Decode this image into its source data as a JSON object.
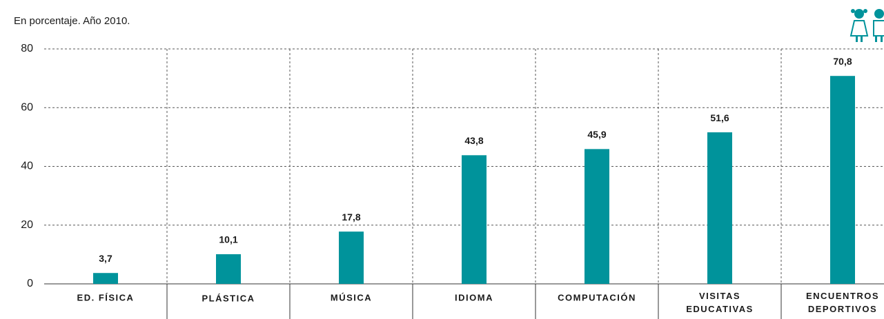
{
  "chart_data": {
    "type": "bar",
    "subtitle": "En porcentaje. Año 2010.",
    "categories": [
      "ED. FÍSICA",
      "PLÁSTICA",
      "MÚSICA",
      "IDIOMA",
      "COMPUTACIÓN",
      "VISITAS EDUCATIVAS",
      "ENCUENTROS DEPORTIVOS"
    ],
    "values": [
      3.7,
      10.1,
      17.8,
      43.8,
      45.9,
      51.6,
      70.8
    ],
    "value_labels": [
      "3,7",
      "10,1",
      "17,8",
      "43,8",
      "45,9",
      "51,6",
      "70,8"
    ],
    "color": "#00939b",
    "ylim": [
      0,
      80
    ],
    "yticks": [
      0,
      20,
      40,
      60,
      80
    ],
    "grid": true
  }
}
